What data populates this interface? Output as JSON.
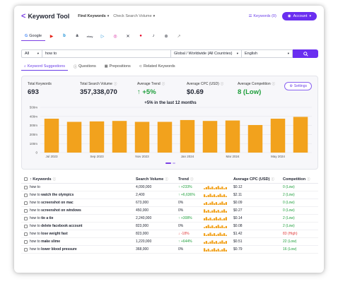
{
  "header": {
    "app_title": "Keyword Tool",
    "nav": [
      {
        "label": "Find Keywords"
      },
      {
        "label": "Check Search Volume"
      }
    ],
    "keywords_count_label": "Keywords (0)",
    "account_label": "Account"
  },
  "platforms": [
    {
      "name": "Google",
      "label": "Google",
      "icon": "google-icon",
      "active": true
    },
    {
      "name": "YouTube",
      "label": "",
      "icon": "youtube-icon",
      "color": "#e62117"
    },
    {
      "name": "Bing",
      "label": "",
      "icon": "bing-icon",
      "color": "#1a8fd6"
    },
    {
      "name": "Amazon",
      "label": "",
      "icon": "amazon-icon",
      "color": "#222222"
    },
    {
      "name": "eBay",
      "label": "",
      "icon": "ebay-icon",
      "color": "#333333"
    },
    {
      "name": "Play Store",
      "label": "",
      "icon": "play-store-icon",
      "color": "#1a8fd6"
    },
    {
      "name": "Instagram",
      "label": "",
      "icon": "instagram-icon",
      "color": "#d6249f"
    },
    {
      "name": "X",
      "label": "",
      "icon": "x-icon",
      "color": "#111111"
    },
    {
      "name": "Pinterest",
      "label": "",
      "icon": "pinterest-icon",
      "color": "#e60023"
    },
    {
      "name": "TikTok",
      "label": "",
      "icon": "tiktok-icon",
      "color": "#111111"
    },
    {
      "name": "App Store",
      "label": "",
      "icon": "app-store-icon",
      "color": "#222222"
    },
    {
      "name": "Trends",
      "label": "",
      "icon": "trends-icon",
      "color": "#888888"
    }
  ],
  "search": {
    "filter_value": "All",
    "query_value": "how to",
    "location_value": "Global / Worldwide (All Countries)",
    "language_value": "English"
  },
  "tabs": [
    {
      "label": "Keyword Suggestions",
      "active": true
    },
    {
      "label": "Questions",
      "active": false
    },
    {
      "label": "Prepositions",
      "active": false
    },
    {
      "label": "Related Keywords",
      "active": false
    }
  ],
  "stats": {
    "total_keywords_label": "Total Keywords",
    "total_keywords_value": "693",
    "total_volume_label": "Total Search Volume",
    "total_volume_value": "357,338,070",
    "avg_trend_label": "Average Trend",
    "avg_trend_value": "↑ +5%",
    "avg_cpc_label": "Average CPC (USD)",
    "avg_cpc_value": "$0.69",
    "avg_comp_label": "Average Competition",
    "avg_comp_value": "8 (Low)",
    "settings_label": "Settings"
  },
  "chart_data": {
    "type": "bar",
    "title": "+5% in the last 12 months",
    "y_ticks": [
      "500m",
      "400m",
      "300m",
      "200m",
      "100m",
      "0"
    ],
    "ylim": [
      0,
      500
    ],
    "x_labels": [
      {
        "label": "Jul 2023",
        "index": 0
      },
      {
        "label": "Sep 2023",
        "index": 2
      },
      {
        "label": "Nov 2023",
        "index": 4
      },
      {
        "label": "Jan 2024",
        "index": 6
      },
      {
        "label": "Mar 2024",
        "index": 8
      },
      {
        "label": "May 2024",
        "index": 10
      }
    ],
    "values": [
      375,
      340,
      345,
      350,
      340,
      340,
      360,
      350,
      355,
      305,
      375,
      395
    ],
    "bar_color": "#f2a21d",
    "grid": true
  },
  "table": {
    "headers": {
      "keywords": "↑ Keywords",
      "search_volume": "Search Volume",
      "trend": "Trend",
      "cpc": "Average CPC (USD)",
      "competition": "Competition"
    },
    "rows": [
      {
        "prefix": "how to",
        "bold": "",
        "volume": "4,090,000",
        "trend": "↑ +233%",
        "trend_dir": "up",
        "cpc": "$0.12",
        "comp": "0 (Low)",
        "comp_level": "low"
      },
      {
        "prefix": "how to",
        "bold": "watch the olympics",
        "volume": "2,400",
        "trend": "↑ +6,636%",
        "trend_dir": "up",
        "cpc": "$2.11",
        "comp": "2 (Low)",
        "comp_level": "low"
      },
      {
        "prefix": "how to",
        "bold": "screenshot on mac",
        "volume": "673,000",
        "trend": "0%",
        "trend_dir": "flat",
        "cpc": "$0.09",
        "comp": "0 (Low)",
        "comp_level": "low"
      },
      {
        "prefix": "how to",
        "bold": "screenshot on windows",
        "volume": "450,000",
        "trend": "0%",
        "trend_dir": "flat",
        "cpc": "$0.27",
        "comp": "0 (Low)",
        "comp_level": "low"
      },
      {
        "prefix": "how to",
        "bold": "tie a tie",
        "volume": "2,240,000",
        "trend": "↑ +308%",
        "trend_dir": "up",
        "cpc": "$0.14",
        "comp": "2 (Low)",
        "comp_level": "low"
      },
      {
        "prefix": "how to",
        "bold": "delete facebook account",
        "volume": "823,000",
        "trend": "0%",
        "trend_dir": "flat",
        "cpc": "$0.08",
        "comp": "2 (Low)",
        "comp_level": "low"
      },
      {
        "prefix": "how to",
        "bold": "lose weight fast",
        "volume": "823,000",
        "trend": "↓ -18%",
        "trend_dir": "down",
        "cpc": "$1.42",
        "comp": "83 (High)",
        "comp_level": "high"
      },
      {
        "prefix": "how to",
        "bold": "make slime",
        "volume": "1,220,000",
        "trend": "↑ +644%",
        "trend_dir": "up",
        "cpc": "$0.51",
        "comp": "22 (Low)",
        "comp_level": "low"
      },
      {
        "prefix": "how to",
        "bold": "lower blood pressure",
        "volume": "368,000",
        "trend": "0%",
        "trend_dir": "flat",
        "cpc": "$0.79",
        "comp": "16 (Low)",
        "comp_level": "low"
      }
    ]
  },
  "colors": {
    "accent": "#6a2ef0",
    "up": "#1e9e3b",
    "down": "#e03b3b",
    "bar": "#f2a21d"
  }
}
